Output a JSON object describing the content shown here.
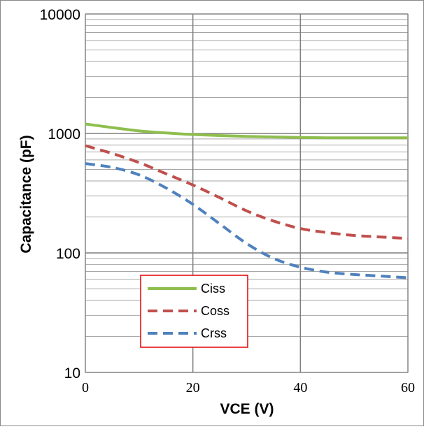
{
  "chart_data": {
    "type": "line",
    "title": "",
    "xlabel": "VCE  (V)",
    "ylabel": "Capacitance  (pF)",
    "xlim": [
      0,
      60
    ],
    "ylim": [
      10,
      10000
    ],
    "y_scale": "log",
    "grid": true,
    "legend_position": "bottom-left",
    "x_ticks": [
      "0",
      "20",
      "40",
      "60"
    ],
    "y_ticks": [
      "10",
      "100",
      "1000",
      "10000"
    ],
    "x": [
      0,
      5,
      10,
      15,
      20,
      25,
      30,
      35,
      40,
      45,
      50,
      55,
      60
    ],
    "series": [
      {
        "name": "Ciss",
        "color": "#8fbe4f",
        "style": "solid",
        "values": [
          1200,
          1120,
          1050,
          1010,
          980,
          960,
          945,
          935,
          925,
          920,
          920,
          920,
          920
        ]
      },
      {
        "name": "Coss",
        "color": "#c0504d",
        "style": "dashed",
        "values": [
          790,
          680,
          570,
          460,
          370,
          290,
          225,
          185,
          160,
          148,
          140,
          136,
          132
        ]
      },
      {
        "name": "Crss",
        "color": "#4f81bd",
        "style": "dashed",
        "values": [
          560,
          520,
          450,
          350,
          255,
          175,
          120,
          90,
          76,
          69,
          66,
          64,
          62
        ]
      }
    ]
  }
}
